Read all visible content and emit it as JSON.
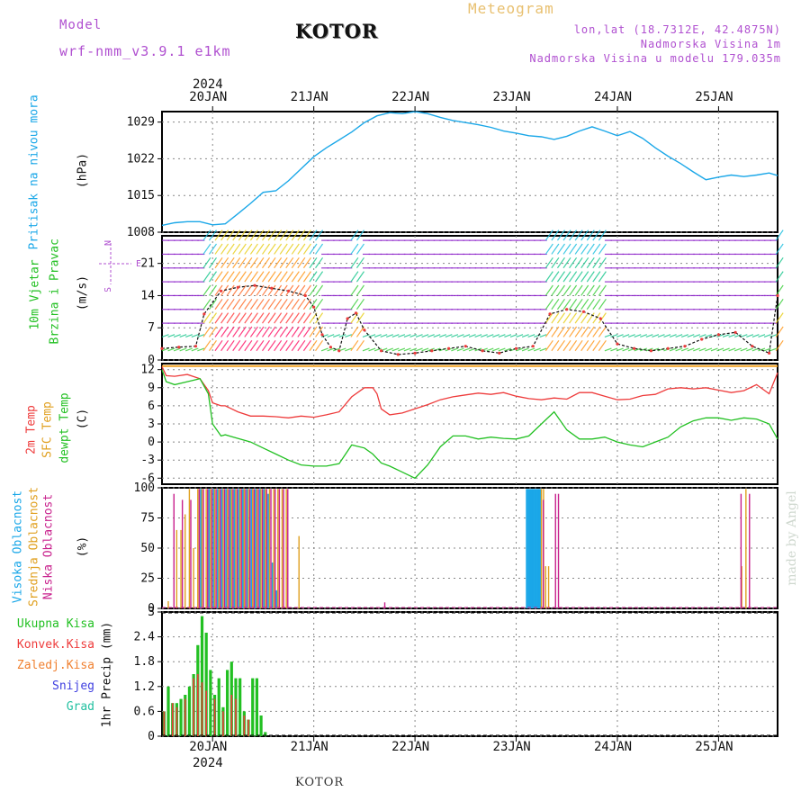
{
  "header": {
    "model_label": "Model",
    "model_name": "wrf-nmm_v3.9.1 e1km",
    "location_title": "KOTOR",
    "meteogram_title": "Meteogram",
    "lonlat": "lon,lat (18.7312E, 42.4875N)",
    "altitude": "Nadmorska Visina 1m",
    "model_altitude": "Nadmorska Visina u modelu 179.035m"
  },
  "footer": {
    "location": "KOTOR",
    "watermark": "made by Angel"
  },
  "colors": {
    "pressure": "#1aa7e8",
    "temp2m": "#ee3b3b",
    "sfc_temp": "#f0a020",
    "dewpoint": "#22c022",
    "high_cloud": "#1aa7e8",
    "mid_cloud": "#e0a020",
    "low_cloud": "#c8208c",
    "precip_total": "#22c022",
    "precip_conv": "#ee3b3b",
    "precip_frozen": "#f08030",
    "snow": "#4040e0",
    "hail": "#22c0a0",
    "wind_label": "#b050d0"
  },
  "chart_data": [
    {
      "type": "line",
      "name": "pressure",
      "xlabels_top": [
        "20JAN",
        "21JAN",
        "22JAN",
        "23JAN",
        "24JAN",
        "25JAN"
      ],
      "year_label": "2024",
      "ylabel_left": "Pritisak na nivou mora",
      "unit": "(hPa)",
      "yticks": [
        "1008",
        "1015",
        "1022",
        "1029"
      ],
      "ylim": [
        1008,
        1031
      ],
      "x": [
        0,
        3,
        6,
        9,
        12,
        15,
        18,
        21,
        24,
        27,
        30,
        33,
        36,
        39,
        42,
        45,
        48,
        51,
        54,
        57,
        60,
        63,
        66,
        69,
        72,
        75,
        78,
        81,
        84,
        87,
        90,
        93,
        96,
        99,
        102,
        105,
        108,
        111,
        114,
        117,
        120,
        123,
        126,
        129,
        132,
        135,
        138,
        141,
        144,
        146
      ],
      "values": [
        1009.3,
        1009.8,
        1010.0,
        1010.0,
        1009.4,
        1009.6,
        1011.5,
        1013.5,
        1015.6,
        1015.9,
        1017.8,
        1020.1,
        1022.4,
        1024.1,
        1025.6,
        1027.1,
        1028.9,
        1030.2,
        1030.8,
        1030.6,
        1031.0,
        1030.6,
        1029.9,
        1029.3,
        1028.9,
        1028.5,
        1028.0,
        1027.3,
        1026.9,
        1026.4,
        1026.2,
        1025.7,
        1026.3,
        1027.3,
        1028.1,
        1027.3,
        1026.4,
        1027.2,
        1025.9,
        1024.1,
        1022.5,
        1021.1,
        1019.5,
        1018.0,
        1018.5,
        1018.9,
        1018.6,
        1018.9,
        1019.3,
        1018.8
      ]
    },
    {
      "type": "line",
      "name": "wind",
      "ylabel_left": "10m Vjetar",
      "ylabel_left2": "Brzina i Pravac",
      "unit": "(m/s)",
      "yticks": [
        "0",
        "7",
        "14",
        "21"
      ],
      "ylim": [
        0,
        27
      ],
      "direction_legend": [
        "N",
        "W",
        "E",
        "S"
      ],
      "series": [
        {
          "values_x": [
            0,
            4,
            8,
            10,
            14,
            18,
            22,
            26,
            30,
            34,
            36,
            38,
            40,
            42,
            44,
            46,
            48,
            52,
            56,
            60,
            64,
            68,
            72,
            76,
            80,
            84,
            88,
            92,
            96,
            100,
            104,
            108,
            112,
            116,
            120,
            124,
            128,
            132,
            136,
            140,
            144,
            146
          ],
          "values": [
            2.5,
            2.8,
            3.0,
            10.0,
            15.0,
            15.8,
            16.2,
            15.6,
            15.0,
            14.0,
            11.5,
            5.5,
            2.8,
            2.0,
            9.0,
            10.2,
            6.5,
            2.0,
            1.2,
            1.5,
            2.0,
            2.5,
            3.0,
            2.0,
            1.5,
            2.5,
            3.0,
            10.0,
            11.0,
            10.5,
            9.0,
            3.5,
            2.5,
            2.0,
            2.5,
            3.0,
            4.5,
            5.5,
            6.0,
            3.0,
            1.5,
            14.0
          ]
        }
      ]
    },
    {
      "type": "line",
      "name": "temperature",
      "ylabel_left": "2m Temp",
      "ylabel_left2": "SFC Temp",
      "ylabel_left3": "dewpt Temp",
      "unit": "(C)",
      "yticks": [
        "-6",
        "-3",
        "0",
        "3",
        "6",
        "9",
        "12"
      ],
      "ylim": [
        -7,
        13
      ],
      "series": [
        {
          "name": "2m Temp",
          "x": [
            0,
            1,
            3,
            6,
            9,
            11,
            12,
            14,
            15,
            18,
            21,
            24,
            27,
            30,
            33,
            36,
            39,
            42,
            45,
            48,
            50,
            51,
            52,
            54,
            57,
            60,
            63,
            66,
            69,
            72,
            75,
            78,
            81,
            84,
            87,
            90,
            93,
            96,
            99,
            102,
            105,
            108,
            111,
            114,
            117,
            120,
            123,
            126,
            129,
            132,
            135,
            138,
            141,
            144,
            146
          ],
          "values": [
            12.5,
            11.0,
            10.9,
            11.2,
            10.5,
            8.5,
            6.5,
            6.0,
            6.0,
            5.0,
            4.3,
            4.3,
            4.2,
            4.0,
            4.3,
            4.1,
            4.5,
            5.0,
            7.5,
            9.0,
            9.0,
            8.0,
            5.5,
            4.5,
            4.8,
            5.5,
            6.2,
            7.0,
            7.5,
            7.8,
            8.1,
            7.9,
            8.2,
            7.6,
            7.2,
            7.0,
            7.3,
            7.1,
            8.2,
            8.2,
            7.6,
            7.0,
            7.1,
            7.7,
            7.9,
            8.8,
            9.0,
            8.8,
            9.0,
            8.6,
            8.2,
            8.5,
            9.5,
            8.0,
            11.5
          ]
        },
        {
          "name": "SFC Temp",
          "x": [
            0,
            146
          ],
          "values": [
            12.6,
            12.6
          ]
        },
        {
          "name": "dewpt Temp",
          "x": [
            0,
            1,
            3,
            6,
            9,
            11,
            12,
            14,
            15,
            18,
            21,
            24,
            27,
            30,
            33,
            36,
            39,
            42,
            45,
            48,
            50,
            52,
            54,
            57,
            60,
            63,
            66,
            69,
            72,
            75,
            78,
            81,
            84,
            87,
            90,
            93,
            96,
            99,
            102,
            105,
            108,
            111,
            114,
            117,
            120,
            123,
            126,
            129,
            132,
            135,
            138,
            141,
            144,
            146
          ],
          "values": [
            12.0,
            10.0,
            9.5,
            10.0,
            10.5,
            8.0,
            3.0,
            1.0,
            1.2,
            0.6,
            0.0,
            -1.0,
            -2.0,
            -3.0,
            -3.8,
            -4.0,
            -4.0,
            -3.6,
            -0.5,
            -1.0,
            -2.0,
            -3.5,
            -4.0,
            -5.0,
            -6.0,
            -3.8,
            -0.8,
            1.0,
            1.0,
            0.5,
            0.8,
            0.6,
            0.5,
            1.0,
            3.0,
            5.0,
            2.0,
            0.5,
            0.5,
            0.8,
            0.0,
            -0.5,
            -0.8,
            0.0,
            0.8,
            2.5,
            3.5,
            4.0,
            4.0,
            3.6,
            4.0,
            3.8,
            3.0,
            0.5
          ]
        }
      ]
    },
    {
      "type": "bar",
      "name": "clouds",
      "ylabel_left": "Visoka Oblacnost",
      "ylabel_left2": "Srednja Oblacnost",
      "ylabel_left3": "Niska Oblacnost",
      "unit": "(%)",
      "yticks": [
        "0",
        "25",
        "50",
        "75",
        "100"
      ],
      "ylim": [
        0,
        100
      ],
      "series": [
        {
          "name": "Visoka Oblacnost",
          "bars": [
            [
              9,
              99
            ],
            [
              11,
              99
            ],
            [
              12,
              99
            ],
            [
              13,
              99
            ],
            [
              14,
              99
            ],
            [
              15,
              99
            ],
            [
              16,
              99
            ],
            [
              17,
              99
            ],
            [
              18,
              99
            ],
            [
              19,
              99
            ],
            [
              20,
              99
            ],
            [
              21,
              99
            ],
            [
              22,
              99
            ],
            [
              23,
              99
            ],
            [
              24,
              99
            ],
            [
              25,
              95
            ],
            [
              26,
              38
            ],
            [
              27,
              15
            ],
            [
              86.3,
              99
            ],
            [
              86.8,
              99
            ],
            [
              87.3,
              99
            ],
            [
              87.8,
              99
            ],
            [
              88.3,
              99
            ],
            [
              88.8,
              99
            ],
            [
              89.3,
              99
            ]
          ]
        },
        {
          "name": "Srednja Oblacnost",
          "bars": [
            [
              1,
              6
            ],
            [
              3,
              65
            ],
            [
              4,
              65
            ],
            [
              5,
              78
            ],
            [
              6,
              99
            ],
            [
              7,
              50
            ],
            [
              8,
              99
            ],
            [
              9,
              99
            ],
            [
              10,
              99
            ],
            [
              11,
              99
            ],
            [
              12,
              99
            ],
            [
              13,
              99
            ],
            [
              14,
              99
            ],
            [
              15,
              99
            ],
            [
              16,
              99
            ],
            [
              17,
              99
            ],
            [
              18,
              99
            ],
            [
              19,
              99
            ],
            [
              20,
              99
            ],
            [
              21,
              99
            ],
            [
              22,
              99
            ],
            [
              23,
              99
            ],
            [
              24,
              99
            ],
            [
              25,
              99
            ],
            [
              26,
              99
            ],
            [
              27,
              99
            ],
            [
              28,
              99
            ],
            [
              29,
              99
            ],
            [
              32,
              60
            ],
            [
              89.5,
              99
            ],
            [
              90.0,
              99
            ],
            [
              90.5,
              35
            ],
            [
              91.2,
              35
            ],
            [
              137,
              35
            ],
            [
              138,
              99
            ]
          ]
        },
        {
          "name": "Niska Oblacnost",
          "bars": [
            [
              2,
              95
            ],
            [
              4,
              90
            ],
            [
              6,
              90
            ],
            [
              8,
              99
            ],
            [
              9,
              99
            ],
            [
              10,
              99
            ],
            [
              11,
              99
            ],
            [
              12,
              99
            ],
            [
              13,
              99
            ],
            [
              14,
              99
            ],
            [
              15,
              99
            ],
            [
              16,
              99
            ],
            [
              17,
              99
            ],
            [
              18,
              99
            ],
            [
              19,
              99
            ],
            [
              20,
              99
            ],
            [
              21,
              99
            ],
            [
              22,
              99
            ],
            [
              23,
              99
            ],
            [
              24,
              99
            ],
            [
              25,
              99
            ],
            [
              26,
              99
            ],
            [
              27,
              99
            ],
            [
              28,
              99
            ],
            [
              29,
              99
            ],
            [
              52,
              5
            ],
            [
              89.6,
              90
            ],
            [
              92.5,
              95
            ],
            [
              93.2,
              95
            ],
            [
              136.5,
              95
            ],
            [
              138.5,
              95
            ]
          ]
        }
      ]
    },
    {
      "type": "bar",
      "name": "precipitation",
      "legend": [
        "Ukupna Kisa",
        "Konvek.Kisa",
        "Zaledj.Kisa",
        "Snijeg",
        "Grad"
      ],
      "ylabel_left": "1hr Precip (mm)",
      "xlabels_bottom": [
        "20JAN",
        "21JAN",
        "22JAN",
        "23JAN",
        "24JAN",
        "25JAN"
      ],
      "year_label": "2024",
      "yticks": [
        "0",
        "0.6",
        "1.2",
        "1.8",
        "2.4",
        "3"
      ],
      "ylim": [
        0,
        3
      ],
      "series": [
        {
          "name": "Ukupna Kisa",
          "bars": [
            [
              0.5,
              0.6
            ],
            [
              1.5,
              1.2
            ],
            [
              2.5,
              0.8
            ],
            [
              3.5,
              0.8
            ],
            [
              4.5,
              0.9
            ],
            [
              5.5,
              1.0
            ],
            [
              6.5,
              1.2
            ],
            [
              7.5,
              1.5
            ],
            [
              8.5,
              2.2
            ],
            [
              9.5,
              2.9
            ],
            [
              10.5,
              2.5
            ],
            [
              11.5,
              1.6
            ],
            [
              12.5,
              1.0
            ],
            [
              13.5,
              1.4
            ],
            [
              14.5,
              0.7
            ],
            [
              15.5,
              1.6
            ],
            [
              16.5,
              1.8
            ],
            [
              17.5,
              1.4
            ],
            [
              18.5,
              1.4
            ],
            [
              19.5,
              0.6
            ],
            [
              20.5,
              0.4
            ],
            [
              21.5,
              1.4
            ],
            [
              22.5,
              1.4
            ],
            [
              23.5,
              0.5
            ],
            [
              24.5,
              0.1
            ]
          ]
        },
        {
          "name": "Konvek.Kisa",
          "bars": [
            [
              0.5,
              0.6
            ],
            [
              2.5,
              0.8
            ],
            [
              3.5,
              0.7
            ],
            [
              5.5,
              0.9
            ],
            [
              7.5,
              1.4
            ],
            [
              8.5,
              1.5
            ],
            [
              9.5,
              1.3
            ],
            [
              10.5,
              1.1
            ],
            [
              12.5,
              0.9
            ],
            [
              14.5,
              0.6
            ],
            [
              16.5,
              1.0
            ],
            [
              17.5,
              0.9
            ],
            [
              19.5,
              0.5
            ],
            [
              20.5,
              0.4
            ]
          ]
        }
      ]
    }
  ]
}
